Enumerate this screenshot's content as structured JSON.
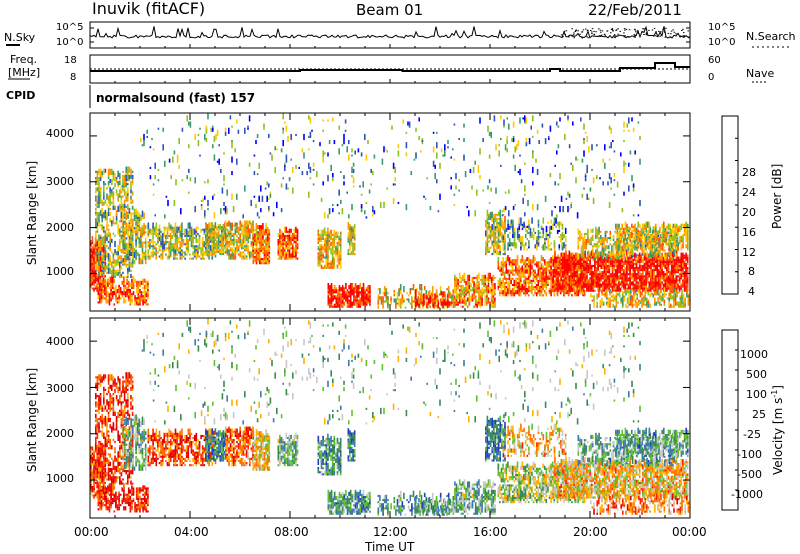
{
  "header": {
    "station": "Inuvik (fitACF)",
    "beam": "Beam 01",
    "date": "22/Feb/2011"
  },
  "panels": {
    "nsky": {
      "label": "N.Sky",
      "right_label": "N.Search",
      "ticks_left": [
        "10^5",
        "10^0"
      ],
      "ticks_right": [
        "10^5",
        "10^0"
      ]
    },
    "freq": {
      "label_line1": "Freq.",
      "label_line2": "[MHz]",
      "right_label": "Nave",
      "ticks_left": [
        "18",
        "8"
      ],
      "ticks_right": [
        "60",
        "0"
      ]
    },
    "cpid": {
      "label": "CPID",
      "program": "normalsound (fast) 157"
    }
  },
  "chart_data": [
    {
      "type": "heatmap",
      "name": "power",
      "ylabel": "Slant Range [km]",
      "yticks": [
        "4000",
        "3000",
        "2000",
        "1000"
      ],
      "ylim": [
        180,
        4500
      ],
      "xlim_hours": [
        0,
        24
      ],
      "colorbar": {
        "label": "Power [dB]",
        "ticks": [
          "28",
          "24",
          "20",
          "16",
          "12",
          "8",
          "4"
        ],
        "colors": [
          "#ff0000",
          "#ff5a00",
          "#ff9600",
          "#ffc800",
          "#90c020",
          "#3d9a6a",
          "#2f55b8",
          "#0000ff"
        ]
      }
    },
    {
      "type": "heatmap",
      "name": "velocity",
      "ylabel": "Slant Range [km]",
      "yticks": [
        "4000",
        "3000",
        "2000",
        "1000"
      ],
      "ylim": [
        180,
        4500
      ],
      "xlim_hours": [
        0,
        24
      ],
      "colorbar": {
        "label": "Velocity [m s",
        "label_sup": "-1",
        "label_end": "]",
        "ticks": [
          "1000",
          "500",
          "100",
          "25",
          "-25",
          "-100",
          "-500",
          "-1000"
        ],
        "colors": [
          "#2040c0",
          "#3d7ab0",
          "#3a8a50",
          "#60c030",
          "#c8c8c8",
          "#ffb000",
          "#ff7000",
          "#ff2000",
          "#e00000"
        ]
      }
    }
  ],
  "xaxis": {
    "label": "Time UT",
    "ticks": [
      "00:00",
      "04:00",
      "08:00",
      "12:00",
      "16:00",
      "20:00",
      "00:00"
    ]
  }
}
